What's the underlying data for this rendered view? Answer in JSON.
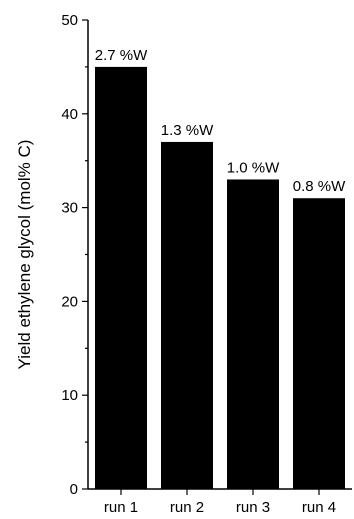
{
  "chart_data": {
    "type": "bar",
    "categories": [
      "run 1",
      "run 2",
      "run 3",
      "run 4"
    ],
    "values": [
      45,
      37,
      33,
      31
    ],
    "data_labels": [
      "2.7 %W",
      "1.3 %W",
      "1.0 %W",
      "0.8 %W"
    ],
    "title": "",
    "xlabel": "",
    "ylabel": "Yield ethylene glycol (mol% C)",
    "ylim": [
      0,
      50
    ],
    "yticks": [
      "0",
      "10",
      "20",
      "30",
      "40",
      "50"
    ],
    "bar_color": "#000000",
    "grid": false
  }
}
